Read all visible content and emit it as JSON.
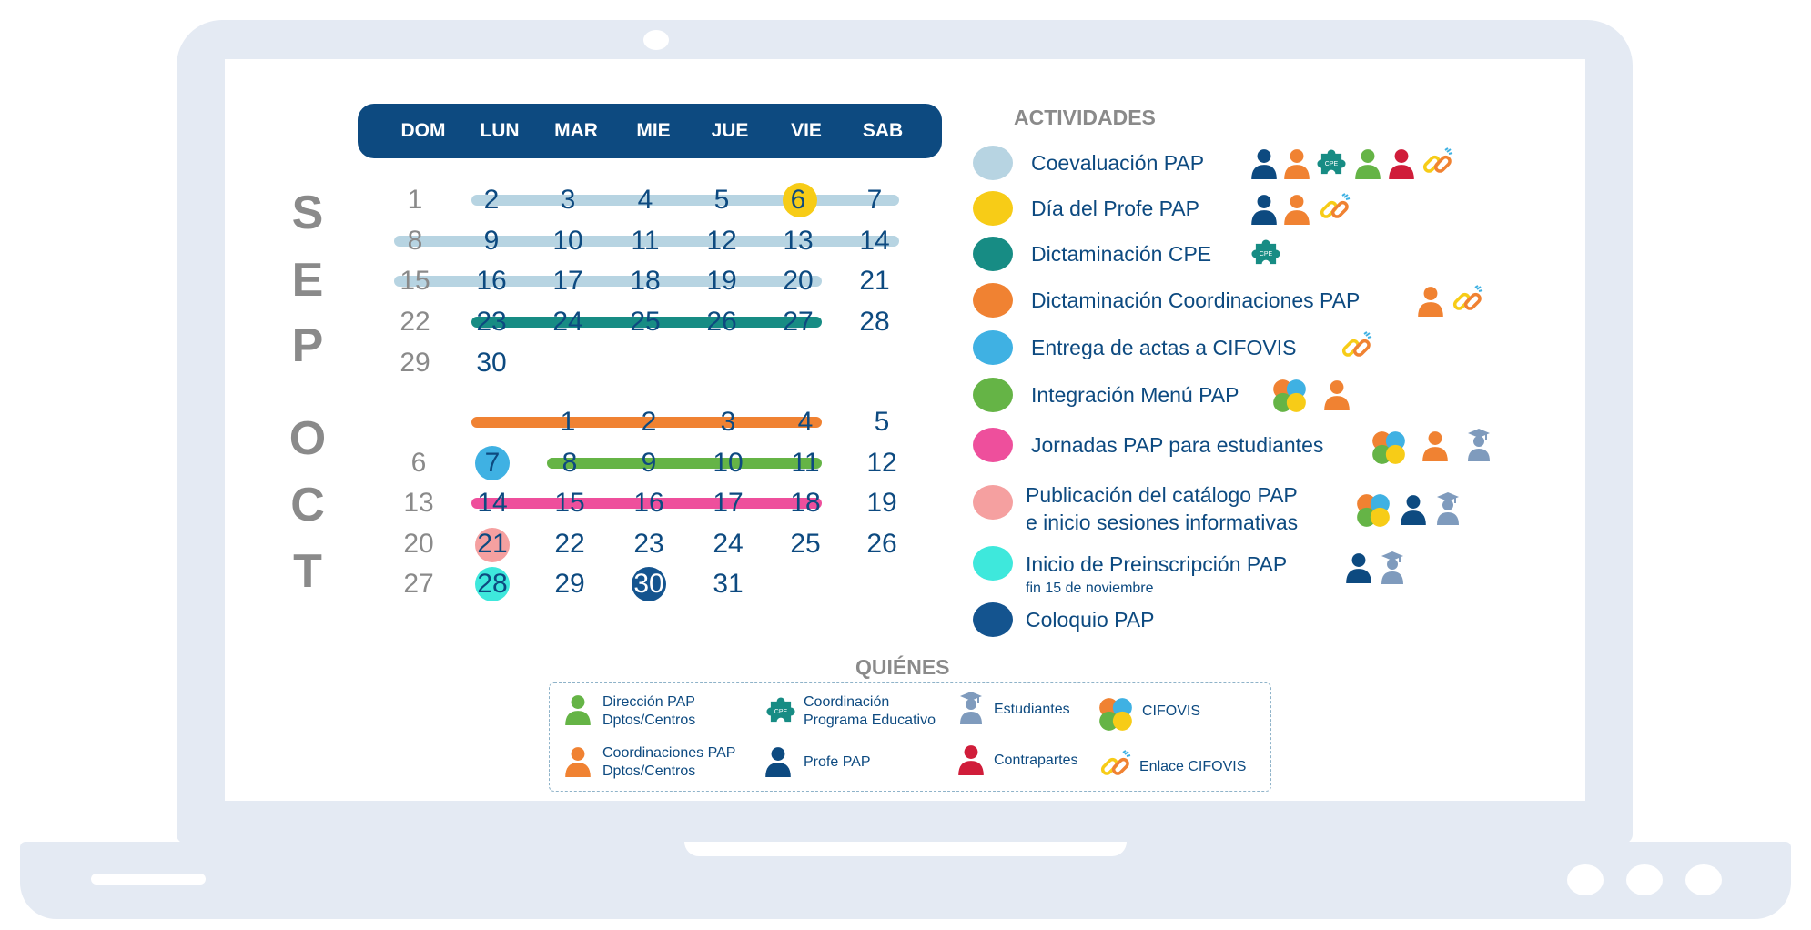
{
  "colors": {
    "navy": "#0d4a80",
    "grey": "#8a8a8a",
    "coevaluacion": "#b7d4e2",
    "dia_profe": "#f7cc17",
    "dictaminacion_cpe": "#178c84",
    "dictaminacion_coord": "#f08232",
    "entrega_actas": "#3fb1e3",
    "integracion_menu": "#65b446",
    "jornadas": "#ee4f9c",
    "publicacion": "#f5a0a0",
    "preinscripcion": "#3ee8dc",
    "coloquio": "#14548f",
    "red": "#d01d3a",
    "light_blue_person": "#7f9bbd"
  },
  "calendar": {
    "day_headers": [
      "DOM",
      "LUN",
      "MAR",
      "MIE",
      "JUE",
      "VIE",
      "SAB"
    ],
    "month_sep": [
      "S",
      "E",
      "P"
    ],
    "month_oct": [
      "O",
      "C",
      "T"
    ],
    "sep": {
      "row1": [
        "1",
        "2",
        "3",
        "4",
        "5",
        "6",
        "7"
      ],
      "row2": [
        "8",
        "9",
        "10",
        "11",
        "12",
        "13",
        "14"
      ],
      "row3": [
        "15",
        "16",
        "17",
        "18",
        "19",
        "20",
        "21"
      ],
      "row4": [
        "22",
        "23",
        "24",
        "25",
        "26",
        "27",
        "28"
      ],
      "row5": [
        "29",
        "30"
      ]
    },
    "oct": {
      "row1": [
        "1",
        "2",
        "3",
        "4",
        "5"
      ],
      "row2": [
        "6",
        "7",
        "8",
        "9",
        "10",
        "11",
        "12"
      ],
      "row3": [
        "13",
        "14",
        "15",
        "16",
        "17",
        "18",
        "19"
      ],
      "row4": [
        "20",
        "21",
        "22",
        "23",
        "24",
        "25",
        "26"
      ],
      "row5": [
        "27",
        "28",
        "29",
        "30",
        "31"
      ]
    }
  },
  "activities": {
    "title": "ACTIVIDADES",
    "items": [
      {
        "label": "Coevaluación PAP"
      },
      {
        "label": "Día del Profe PAP"
      },
      {
        "label": "Dictaminación CPE"
      },
      {
        "label": "Dictaminación Coordinaciones PAP"
      },
      {
        "label": "Entrega de actas a CIFOVIS"
      },
      {
        "label": "Integración Menú PAP"
      },
      {
        "label": "Jornadas PAP para estudiantes"
      },
      {
        "label_line1": "Publicación del catálogo PAP",
        "label_line2": "e inicio sesiones informativas"
      },
      {
        "label": "Inicio de Preinscripción PAP",
        "sub": "fin 15 de noviembre"
      },
      {
        "label": "Coloquio PAP"
      }
    ],
    "cpe_badge": "CPE"
  },
  "quienes": {
    "title": "QUIÉNES",
    "direccion_l1": "Dirección PAP",
    "direccion_l2": "Dptos/Centros",
    "coordinacion_pe_l1": "Coordinación",
    "coordinacion_pe_l2": "Programa Educativo",
    "estudiantes": "Estudiantes",
    "cifovis": "CIFOVIS",
    "coordinaciones_l1": "Coordinaciones PAP",
    "coordinaciones_l2": "Dptos/Centros",
    "profe": "Profe PAP",
    "contrapartes": "Contrapartes",
    "enlace": "Enlace CIFOVIS"
  }
}
